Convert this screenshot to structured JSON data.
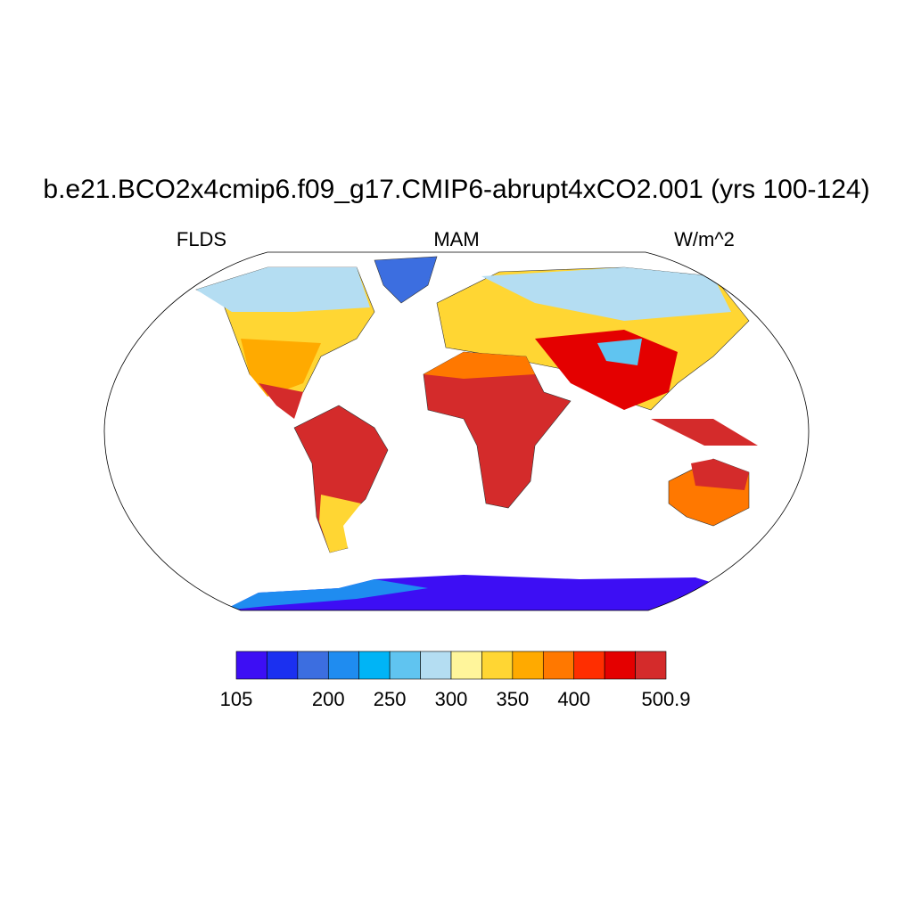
{
  "title": "b.e21.BCO2x4cmip6.f09_g17.CMIP6-abrupt4xCO2.001 (yrs 100-124)",
  "left_label": "FLDS",
  "center_label": "MAM",
  "right_label": "W/m^2",
  "colorbar": {
    "colors": [
      "#3d0ef4",
      "#1b30f0",
      "#3c6ee0",
      "#1f8cf0",
      "#00b4f6",
      "#60c4f0",
      "#b4ddf2",
      "#fff59b",
      "#ffd633",
      "#ffaa00",
      "#ff7800",
      "#ff2e00",
      "#e40000",
      "#d42b2b"
    ],
    "boundaries": [
      105,
      null,
      null,
      200,
      null,
      250,
      null,
      300,
      null,
      350,
      null,
      400,
      null,
      null,
      500.9
    ]
  }
}
